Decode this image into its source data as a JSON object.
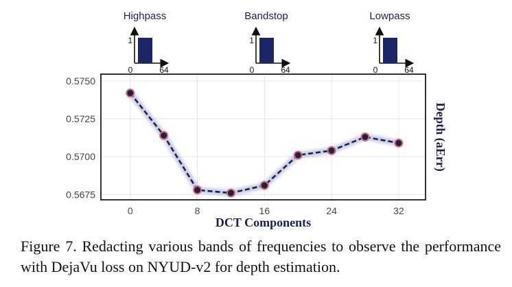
{
  "chart_data": {
    "type": "line",
    "x": [
      0,
      4,
      8,
      12,
      16,
      20,
      24,
      28,
      32
    ],
    "values": [
      0.5742,
      0.5714,
      0.5678,
      0.5676,
      0.5681,
      0.5701,
      0.5704,
      0.5713,
      0.5709
    ],
    "xticks": [
      0,
      8,
      16,
      24,
      32
    ],
    "yticks": [
      0.5675,
      0.57,
      0.5725,
      0.575
    ],
    "ytick_labels": [
      "0.5675",
      "0.5700",
      "0.5725",
      "0.5750"
    ],
    "xlim": [
      -3.5,
      35.2
    ],
    "ylim": [
      0.56715,
      0.57545
    ],
    "xlabel": "DCT Components",
    "ylabel": "Depth (aErr)",
    "grid": true,
    "colors": {
      "line": "#1b2250",
      "marker_edge": "#e06a6a",
      "halo": "#9aa0c8",
      "frame": "#333333"
    }
  },
  "filters": [
    {
      "title": "Highpass",
      "y_label": "1",
      "x_start": "0",
      "x_end": "64",
      "band": "high"
    },
    {
      "title": "Bandstop",
      "y_label": "1",
      "x_start": "0",
      "x_end": "64",
      "band": "stop"
    },
    {
      "title": "Lowpass",
      "y_label": "1",
      "x_start": "0",
      "x_end": "64",
      "band": "low"
    }
  ],
  "filter_color": "#1c2566",
  "caption": "Figure 7. Redacting various bands of frequencies to observe the performance with DejaVu loss on NYUD-v2 for depth estimation."
}
